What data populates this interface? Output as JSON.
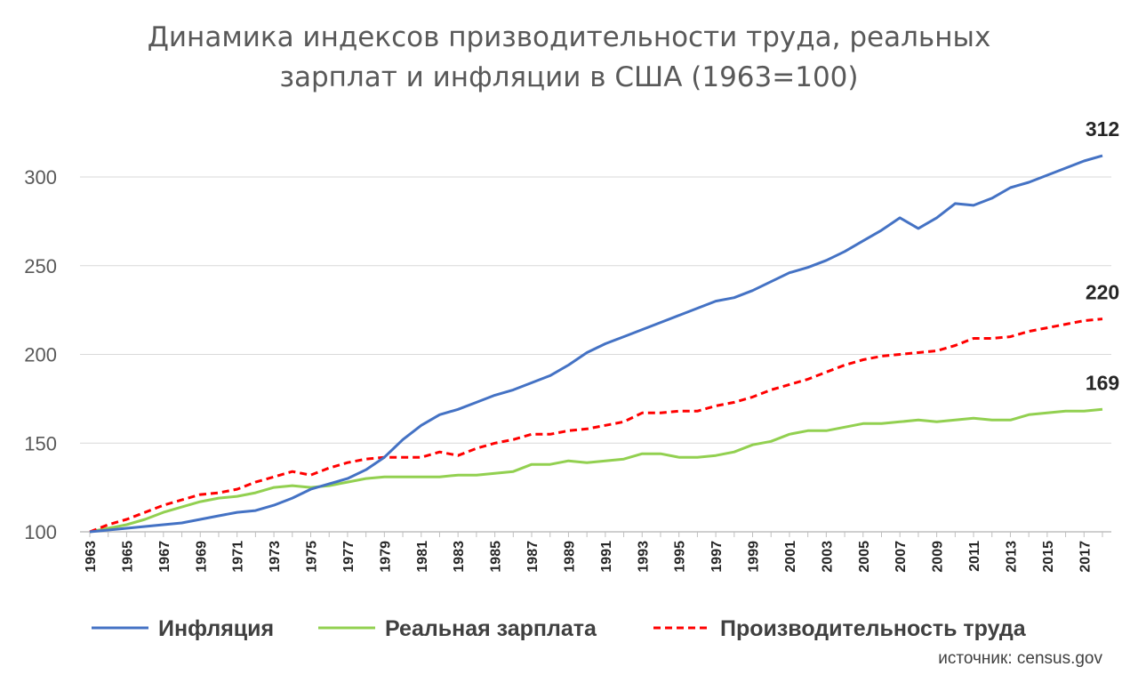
{
  "chart_data": {
    "type": "line",
    "title": "Динамика индексов призводительности труда, реальных зарплат и инфляции в США (1963=100)",
    "title_lines": [
      "Динамика индексов призводительности труда, реальных",
      "зарплат и инфляции в США (1963=100)"
    ],
    "xlabel": "",
    "ylabel": "",
    "ylim": [
      100,
      320
    ],
    "yticks": [
      100,
      150,
      200,
      250,
      300
    ],
    "x": [
      1963,
      1964,
      1965,
      1966,
      1967,
      1968,
      1969,
      1970,
      1971,
      1972,
      1973,
      1974,
      1975,
      1976,
      1977,
      1978,
      1979,
      1980,
      1981,
      1982,
      1983,
      1984,
      1985,
      1986,
      1987,
      1988,
      1989,
      1990,
      1991,
      1992,
      1993,
      1994,
      1995,
      1996,
      1997,
      1998,
      1999,
      2000,
      2001,
      2002,
      2003,
      2004,
      2005,
      2006,
      2007,
      2008,
      2009,
      2010,
      2011,
      2012,
      2013,
      2014,
      2015,
      2016,
      2017,
      2018
    ],
    "xtick_labels": [
      "1963",
      "1965",
      "1967",
      "1969",
      "1971",
      "1973",
      "1975",
      "1977",
      "1979",
      "1981",
      "1983",
      "1985",
      "1987",
      "1989",
      "1991",
      "1993",
      "1995",
      "1997",
      "1999",
      "2001",
      "2003",
      "2005",
      "2007",
      "2009",
      "2011",
      "2013",
      "2015",
      "2017"
    ],
    "grid": "horizontal",
    "legend_position": "bottom",
    "series": [
      {
        "name": "Инфляция",
        "color": "#4472c4",
        "dash": "solid",
        "end_label": "312",
        "values": [
          100,
          101,
          102,
          103,
          104,
          105,
          107,
          109,
          111,
          112,
          115,
          119,
          124,
          127,
          130,
          135,
          142,
          152,
          160,
          166,
          169,
          173,
          177,
          180,
          184,
          188,
          194,
          201,
          206,
          210,
          214,
          218,
          222,
          226,
          230,
          232,
          236,
          241,
          246,
          249,
          253,
          258,
          264,
          270,
          277,
          271,
          277,
          285,
          284,
          288,
          294,
          297,
          301,
          305,
          309,
          312
        ]
      },
      {
        "name": "Реальная зарплата",
        "color": "#92d050",
        "dash": "solid",
        "end_label": "169",
        "values": [
          100,
          102,
          104,
          107,
          111,
          114,
          117,
          119,
          120,
          122,
          125,
          126,
          125,
          126,
          128,
          130,
          131,
          131,
          131,
          131,
          132,
          132,
          133,
          134,
          138,
          138,
          140,
          139,
          140,
          141,
          144,
          144,
          142,
          142,
          143,
          145,
          149,
          151,
          155,
          157,
          157,
          159,
          161,
          161,
          162,
          163,
          162,
          163,
          164,
          163,
          163,
          166,
          167,
          168,
          168,
          169
        ]
      },
      {
        "name": "Производительность труда",
        "color": "#ff0000",
        "dash": "dashed",
        "end_label": "220",
        "values": [
          100,
          104,
          107,
          111,
          115,
          118,
          121,
          122,
          124,
          128,
          131,
          134,
          132,
          136,
          139,
          141,
          142,
          142,
          142,
          145,
          143,
          147,
          150,
          152,
          155,
          155,
          157,
          158,
          160,
          162,
          167,
          167,
          168,
          168,
          171,
          173,
          176,
          180,
          183,
          186,
          190,
          194,
          197,
          199,
          200,
          201,
          202,
          205,
          209,
          209,
          210,
          213,
          215,
          217,
          219,
          220
        ]
      }
    ]
  },
  "source": "источник: census.gov"
}
